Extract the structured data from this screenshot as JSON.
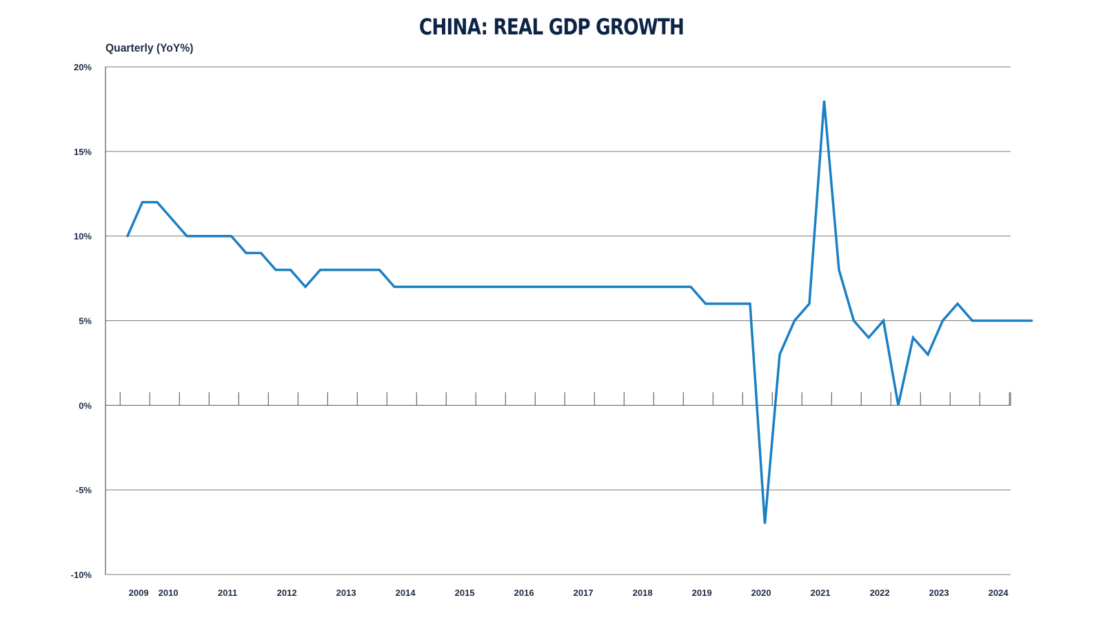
{
  "chart_data": {
    "type": "line",
    "title": "CHINA: REAL GDP GROWTH",
    "ylabel": "Quarterly (YoY%)",
    "xlabel": "",
    "ylim": [
      -10,
      20
    ],
    "y_ticks": [
      20,
      15,
      10,
      5,
      0,
      -5,
      -10
    ],
    "y_tick_labels": [
      "20%",
      "15%",
      "10%",
      "5%",
      "0%",
      "-5%",
      "-10%"
    ],
    "x_tick_labels": [
      "2009",
      "2010",
      "2011",
      "2012",
      "2013",
      "2014",
      "2015",
      "2016",
      "2017",
      "2018",
      "2019",
      "2020",
      "2021",
      "2022",
      "2023",
      "2024"
    ],
    "x_tick_label_quarter_index": [
      0.75,
      2.75,
      6.75,
      10.75,
      14.75,
      18.75,
      22.75,
      26.75,
      30.75,
      34.75,
      38.75,
      42.75,
      46.75,
      50.75,
      54.75,
      58.75
    ],
    "grid": "horizontal",
    "line_color": "#1a7fc4",
    "series": [
      {
        "values": [
          10,
          12,
          12,
          11,
          10,
          10,
          10,
          10,
          9,
          9,
          8,
          8,
          7,
          8,
          8,
          8,
          8,
          8,
          7,
          7,
          7,
          7,
          7,
          7,
          7,
          7,
          7,
          7,
          7,
          7,
          7,
          7,
          7,
          7,
          7,
          7,
          7,
          7,
          7,
          6,
          6,
          6,
          6,
          -7,
          3,
          5,
          6,
          18,
          8,
          5,
          4,
          5,
          0,
          4,
          3,
          5,
          6,
          5,
          5,
          5,
          5,
          5
        ]
      }
    ]
  }
}
